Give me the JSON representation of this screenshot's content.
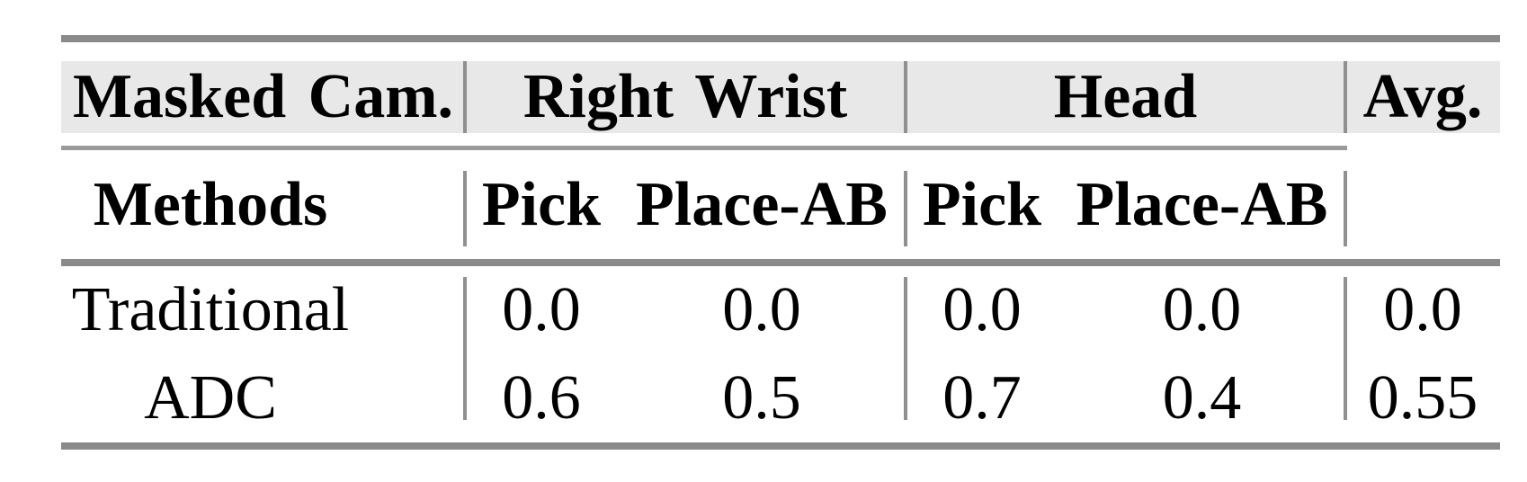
{
  "table": {
    "header_row1": {
      "masked_cam": "Masked Cam.",
      "right_wrist": "Right Wrist",
      "head": "Head",
      "avg": "Avg."
    },
    "header_row2": {
      "methods": "Methods",
      "rw_pick": "Pick",
      "rw_place_ab": "Place-AB",
      "head_pick": "Pick",
      "head_place_ab": "Place-AB"
    },
    "rows": [
      {
        "method": "Traditional",
        "rw_pick": "0.0",
        "rw_place_ab": "0.0",
        "head_pick": "0.0",
        "head_place_ab": "0.0",
        "avg": "0.0"
      },
      {
        "method": "ADC",
        "rw_pick": "0.6",
        "rw_place_ab": "0.5",
        "head_pick": "0.7",
        "head_place_ab": "0.4",
        "avg": "0.55"
      }
    ],
    "colors": {
      "header_bg": "#e8e8e8",
      "rule_thick": "#8a8a8a",
      "rule_thin": "#9a9a9a",
      "separator": "#909090",
      "text": "#000000",
      "page_bg": "#ffffff"
    }
  },
  "chart_data": {
    "type": "table",
    "column_groups": [
      {
        "label": "Masked Cam.",
        "span": 1
      },
      {
        "label": "Right Wrist",
        "span": 2
      },
      {
        "label": "Head",
        "span": 2
      },
      {
        "label": "Avg.",
        "span": 1
      }
    ],
    "columns": [
      "Methods",
      "Pick",
      "Place-AB",
      "Pick",
      "Place-AB",
      "Avg."
    ],
    "rows": [
      [
        "Traditional",
        0.0,
        0.0,
        0.0,
        0.0,
        0.0
      ],
      [
        "ADC",
        0.6,
        0.5,
        0.7,
        0.4,
        0.55
      ]
    ]
  }
}
